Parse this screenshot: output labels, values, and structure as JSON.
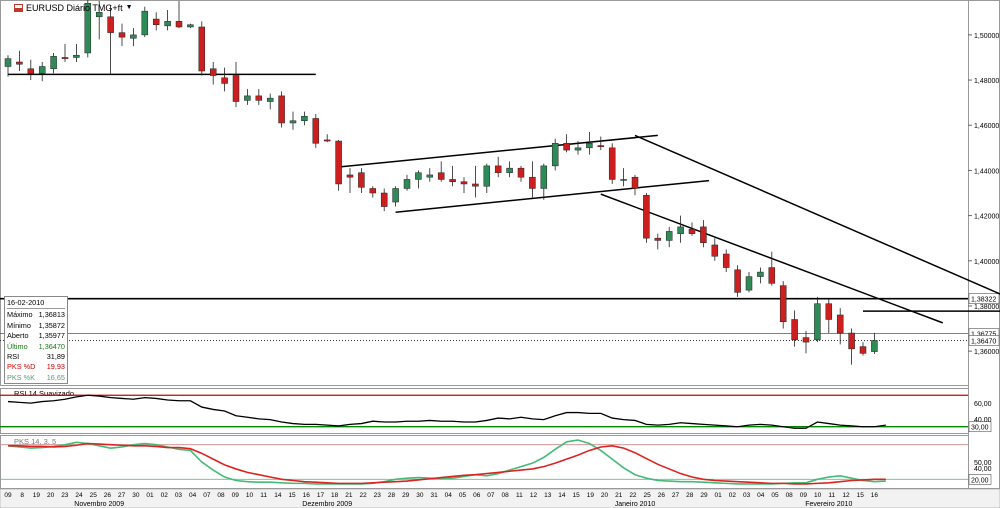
{
  "window": {
    "title": "EURUSD Diário TMG+ft"
  },
  "info_box": {
    "date": "16-02-2010",
    "rows": [
      {
        "label": "Máximo",
        "value": "1,36813",
        "color": "#000000"
      },
      {
        "label": "Mínimo",
        "value": "1,35872",
        "color": "#000000"
      },
      {
        "label": "Aberto",
        "value": "1,35977",
        "color": "#000000"
      },
      {
        "label": "Último",
        "value": "1,36470",
        "color": "#1a7a1a"
      },
      {
        "label": "RSI",
        "value": "31,89",
        "color": "#000000"
      },
      {
        "label": "PKS %D",
        "value": "19,93",
        "color": "#cc0000"
      },
      {
        "label": "PKS %K",
        "value": "16,65",
        "color": "#5a9a7a"
      }
    ]
  },
  "colors": {
    "up_candle": "#2e8b57",
    "down_candle": "#cc1f1f",
    "rsi_line": "#000000",
    "pks_d": "#dd2222",
    "pks_k": "#44bb77",
    "level_line": "#008800",
    "red_level": "#cc0000"
  },
  "chart_data": [
    {
      "type": "candlestick",
      "title": "EURUSD Diário TMG+ft",
      "ylim": [
        1.345,
        1.515
      ],
      "y_ticks": [
        1.5,
        1.48,
        1.46,
        1.44,
        1.42,
        1.4,
        1.38,
        1.36
      ],
      "y_tick_labels": [
        "1,50000",
        "1,48000",
        "1,46000",
        "1,44000",
        "1,42000",
        "1,40000",
        "1,38000",
        "1,36000"
      ],
      "price_labels": [
        {
          "value": 1.38322,
          "text": "1,38322"
        },
        {
          "value": 1.36775,
          "text": "1,36775"
        },
        {
          "value": 1.3647,
          "text": "1,36470"
        }
      ],
      "horizontal_levels": [
        1.4825,
        1.3832,
        1.3678,
        1.3647
      ],
      "trendlines": [
        {
          "from": [
            0,
            1.4825
          ],
          "to": [
            27,
            1.4825
          ]
        },
        {
          "from": [
            29,
            1.4415
          ],
          "to": [
            57,
            1.4555
          ]
        },
        {
          "from": [
            34,
            1.4215
          ],
          "to": [
            61.5,
            1.4355
          ]
        },
        {
          "from": [
            55,
            1.4555
          ],
          "to": [
            91.5,
            1.3755
          ]
        },
        {
          "from": [
            52,
            1.4295
          ],
          "to": [
            82,
            1.3725
          ]
        },
        {
          "from": [
            75,
            1.3777
          ],
          "to": [
            89,
            1.3777
          ]
        }
      ],
      "candles": [
        {
          "o": 1.486,
          "h": 1.491,
          "l": 1.4815,
          "c": 1.4895
        },
        {
          "o": 1.488,
          "h": 1.493,
          "l": 1.484,
          "c": 1.487
        },
        {
          "o": 1.485,
          "h": 1.489,
          "l": 1.48,
          "c": 1.483
        },
        {
          "o": 1.483,
          "h": 1.488,
          "l": 1.4795,
          "c": 1.486
        },
        {
          "o": 1.485,
          "h": 1.492,
          "l": 1.483,
          "c": 1.4905
        },
        {
          "o": 1.49,
          "h": 1.496,
          "l": 1.488,
          "c": 1.4895
        },
        {
          "o": 1.49,
          "h": 1.496,
          "l": 1.488,
          "c": 1.491
        },
        {
          "o": 1.492,
          "h": 1.516,
          "l": 1.49,
          "c": 1.514
        },
        {
          "o": 1.508,
          "h": 1.515,
          "l": 1.498,
          "c": 1.51
        },
        {
          "o": 1.508,
          "h": 1.513,
          "l": 1.4825,
          "c": 1.501
        },
        {
          "o": 1.501,
          "h": 1.505,
          "l": 1.495,
          "c": 1.499
        },
        {
          "o": 1.4985,
          "h": 1.503,
          "l": 1.495,
          "c": 1.5
        },
        {
          "o": 1.5,
          "h": 1.5125,
          "l": 1.499,
          "c": 1.5105
        },
        {
          "o": 1.507,
          "h": 1.51,
          "l": 1.502,
          "c": 1.5045
        },
        {
          "o": 1.504,
          "h": 1.511,
          "l": 1.502,
          "c": 1.506
        },
        {
          "o": 1.506,
          "h": 1.515,
          "l": 1.503,
          "c": 1.5035
        },
        {
          "o": 1.5035,
          "h": 1.505,
          "l": 1.503,
          "c": 1.5045
        },
        {
          "o": 1.5035,
          "h": 1.506,
          "l": 1.482,
          "c": 1.484
        },
        {
          "o": 1.485,
          "h": 1.488,
          "l": 1.478,
          "c": 1.482
        },
        {
          "o": 1.481,
          "h": 1.4855,
          "l": 1.475,
          "c": 1.4785
        },
        {
          "o": 1.482,
          "h": 1.488,
          "l": 1.468,
          "c": 1.4705
        },
        {
          "o": 1.471,
          "h": 1.476,
          "l": 1.469,
          "c": 1.473
        },
        {
          "o": 1.473,
          "h": 1.476,
          "l": 1.469,
          "c": 1.471
        },
        {
          "o": 1.4705,
          "h": 1.474,
          "l": 1.467,
          "c": 1.472
        },
        {
          "o": 1.473,
          "h": 1.475,
          "l": 1.459,
          "c": 1.461
        },
        {
          "o": 1.461,
          "h": 1.466,
          "l": 1.458,
          "c": 1.462
        },
        {
          "o": 1.462,
          "h": 1.466,
          "l": 1.46,
          "c": 1.464
        },
        {
          "o": 1.463,
          "h": 1.465,
          "l": 1.45,
          "c": 1.452
        },
        {
          "o": 1.4535,
          "h": 1.456,
          "l": 1.4525,
          "c": 1.453
        },
        {
          "o": 1.453,
          "h": 1.4535,
          "l": 1.431,
          "c": 1.434
        },
        {
          "o": 1.438,
          "h": 1.441,
          "l": 1.43,
          "c": 1.437
        },
        {
          "o": 1.439,
          "h": 1.441,
          "l": 1.43,
          "c": 1.4325
        },
        {
          "o": 1.432,
          "h": 1.433,
          "l": 1.428,
          "c": 1.43
        },
        {
          "o": 1.43,
          "h": 1.432,
          "l": 1.422,
          "c": 1.424
        },
        {
          "o": 1.426,
          "h": 1.433,
          "l": 1.424,
          "c": 1.432
        },
        {
          "o": 1.432,
          "h": 1.438,
          "l": 1.431,
          "c": 1.436
        },
        {
          "o": 1.436,
          "h": 1.44,
          "l": 1.432,
          "c": 1.439
        },
        {
          "o": 1.437,
          "h": 1.441,
          "l": 1.435,
          "c": 1.438
        },
        {
          "o": 1.439,
          "h": 1.444,
          "l": 1.435,
          "c": 1.436
        },
        {
          "o": 1.436,
          "h": 1.442,
          "l": 1.433,
          "c": 1.435
        },
        {
          "o": 1.435,
          "h": 1.437,
          "l": 1.43,
          "c": 1.434
        },
        {
          "o": 1.434,
          "h": 1.442,
          "l": 1.428,
          "c": 1.433
        },
        {
          "o": 1.433,
          "h": 1.443,
          "l": 1.43,
          "c": 1.442
        },
        {
          "o": 1.442,
          "h": 1.446,
          "l": 1.437,
          "c": 1.439
        },
        {
          "o": 1.439,
          "h": 1.444,
          "l": 1.437,
          "c": 1.441
        },
        {
          "o": 1.441,
          "h": 1.442,
          "l": 1.435,
          "c": 1.437
        },
        {
          "o": 1.437,
          "h": 1.444,
          "l": 1.428,
          "c": 1.432
        },
        {
          "o": 1.432,
          "h": 1.443,
          "l": 1.427,
          "c": 1.442
        },
        {
          "o": 1.442,
          "h": 1.454,
          "l": 1.44,
          "c": 1.452
        },
        {
          "o": 1.452,
          "h": 1.456,
          "l": 1.448,
          "c": 1.449
        },
        {
          "o": 1.449,
          "h": 1.453,
          "l": 1.447,
          "c": 1.45
        },
        {
          "o": 1.45,
          "h": 1.457,
          "l": 1.447,
          "c": 1.452
        },
        {
          "o": 1.451,
          "h": 1.455,
          "l": 1.449,
          "c": 1.4505
        },
        {
          "o": 1.45,
          "h": 1.452,
          "l": 1.434,
          "c": 1.436
        },
        {
          "o": 1.436,
          "h": 1.441,
          "l": 1.433,
          "c": 1.436
        },
        {
          "o": 1.437,
          "h": 1.438,
          "l": 1.429,
          "c": 1.432
        },
        {
          "o": 1.429,
          "h": 1.43,
          "l": 1.408,
          "c": 1.41
        },
        {
          "o": 1.41,
          "h": 1.412,
          "l": 1.405,
          "c": 1.409
        },
        {
          "o": 1.409,
          "h": 1.415,
          "l": 1.406,
          "c": 1.413
        },
        {
          "o": 1.412,
          "h": 1.42,
          "l": 1.408,
          "c": 1.415
        },
        {
          "o": 1.414,
          "h": 1.417,
          "l": 1.411,
          "c": 1.412
        },
        {
          "o": 1.415,
          "h": 1.418,
          "l": 1.406,
          "c": 1.408
        },
        {
          "o": 1.407,
          "h": 1.41,
          "l": 1.4,
          "c": 1.402
        },
        {
          "o": 1.403,
          "h": 1.405,
          "l": 1.395,
          "c": 1.397
        },
        {
          "o": 1.396,
          "h": 1.398,
          "l": 1.384,
          "c": 1.386
        },
        {
          "o": 1.387,
          "h": 1.395,
          "l": 1.386,
          "c": 1.393
        },
        {
          "o": 1.393,
          "h": 1.397,
          "l": 1.39,
          "c": 1.395
        },
        {
          "o": 1.397,
          "h": 1.404,
          "l": 1.389,
          "c": 1.39
        },
        {
          "o": 1.389,
          "h": 1.391,
          "l": 1.37,
          "c": 1.373
        },
        {
          "o": 1.374,
          "h": 1.378,
          "l": 1.362,
          "c": 1.365
        },
        {
          "o": 1.366,
          "h": 1.369,
          "l": 1.359,
          "c": 1.364
        },
        {
          "o": 1.365,
          "h": 1.384,
          "l": 1.364,
          "c": 1.381
        },
        {
          "o": 1.381,
          "h": 1.383,
          "l": 1.368,
          "c": 1.374
        },
        {
          "o": 1.376,
          "h": 1.379,
          "l": 1.363,
          "c": 1.368
        },
        {
          "o": 1.368,
          "h": 1.37,
          "l": 1.354,
          "c": 1.361
        },
        {
          "o": 1.362,
          "h": 1.364,
          "l": 1.358,
          "c": 1.359
        },
        {
          "o": 1.3598,
          "h": 1.3681,
          "l": 1.3587,
          "c": 1.3647
        }
      ]
    },
    {
      "type": "line",
      "title": "RSI 14 Suavizado",
      "ylim": [
        22,
        78
      ],
      "y_ticks": [
        60,
        40
      ],
      "y_tick_labels": [
        "60,00",
        "40,00"
      ],
      "levels": [
        70,
        30
      ],
      "level_labels": [
        "30,00"
      ],
      "series": [
        {
          "values": [
            62,
            61,
            60,
            62,
            63,
            65,
            68,
            70,
            69,
            67,
            66,
            65,
            67,
            66,
            64,
            63,
            63,
            55,
            52,
            50,
            44,
            42,
            40,
            39,
            36,
            34,
            33,
            33,
            32,
            31,
            33,
            34,
            37,
            36,
            36,
            37,
            37,
            38,
            37,
            37,
            36,
            36,
            38,
            41,
            40,
            42,
            40,
            39,
            44,
            48,
            48,
            47,
            47,
            41,
            39,
            38,
            33,
            32,
            33,
            35,
            34,
            33,
            32,
            31,
            30,
            32,
            33,
            32,
            30,
            28,
            28,
            36,
            34,
            32,
            31,
            30,
            30,
            32
          ]
        }
      ]
    },
    {
      "type": "line",
      "title": "PKS 14, 3, 5",
      "ylim": [
        5,
        95
      ],
      "y_ticks": [
        50,
        40
      ],
      "y_tick_labels": [
        "50,00",
        "40,00"
      ],
      "levels": [
        80,
        20
      ],
      "level_labels": [
        "20,00"
      ],
      "series": [
        {
          "name": "PKS %D",
          "values": [
            78,
            78,
            77,
            77,
            76,
            77,
            79,
            82,
            81,
            80,
            79,
            78,
            78,
            77,
            75,
            75,
            73,
            65,
            55,
            45,
            38,
            32,
            28,
            24,
            20,
            18,
            16,
            15,
            14,
            13,
            13,
            13,
            14,
            15,
            16,
            17,
            19,
            21,
            23,
            25,
            27,
            28,
            30,
            32,
            34,
            36,
            38,
            42,
            48,
            55,
            62,
            70,
            76,
            78,
            74,
            66,
            56,
            46,
            38,
            30,
            24,
            20,
            18,
            17,
            16,
            15,
            14,
            13,
            13,
            12,
            12,
            13,
            14,
            16,
            18,
            19,
            20,
            20
          ]
        },
        {
          "name": "PKS %K",
          "values": [
            78,
            76,
            74,
            75,
            77,
            80,
            84,
            82,
            78,
            74,
            76,
            80,
            82,
            80,
            76,
            72,
            70,
            50,
            36,
            24,
            18,
            16,
            15,
            15,
            14,
            13,
            13,
            12,
            12,
            12,
            12,
            12,
            13,
            16,
            20,
            22,
            23,
            22,
            21,
            22,
            25,
            28,
            26,
            30,
            36,
            42,
            48,
            58,
            72,
            85,
            88,
            82,
            70,
            55,
            40,
            28,
            22,
            18,
            17,
            16,
            16,
            15,
            14,
            13,
            12,
            12,
            12,
            12,
            13,
            14,
            14,
            20,
            24,
            26,
            22,
            18,
            16,
            17
          ]
        }
      ]
    }
  ],
  "time_axis": {
    "day_labels": [
      "09",
      "8",
      "19",
      "20",
      "23",
      "24",
      "25",
      "26",
      "27",
      "30",
      "01",
      "02",
      "03",
      "04",
      "07",
      "08",
      "09",
      "10",
      "11",
      "14",
      "15",
      "16",
      "17",
      "18",
      "21",
      "22",
      "23",
      "28",
      "29",
      "30",
      "31",
      "04",
      "05",
      "06",
      "07",
      "08",
      "11",
      "12",
      "13",
      "14",
      "15",
      "19",
      "20",
      "21",
      "22",
      "25",
      "26",
      "27",
      "28",
      "29",
      "01",
      "02",
      "03",
      "04",
      "05",
      "08",
      "09",
      "10",
      "11",
      "12",
      "15",
      "16"
    ],
    "month_labels": [
      {
        "text": "Novembro 2009",
        "at": 8
      },
      {
        "text": "Dezembro 2009",
        "at": 28
      },
      {
        "text": "Janeiro 2010",
        "at": 55
      },
      {
        "text": "Fevereiro 2010",
        "at": 72
      }
    ]
  }
}
